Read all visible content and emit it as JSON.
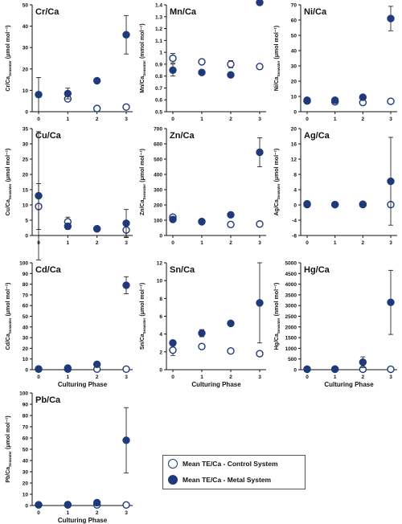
{
  "legend": {
    "control_label": "Mean TE/Ca - Control System",
    "metal_label": "Mean TE/Ca - Metal System"
  },
  "colors": {
    "marker": "#1f3a7a",
    "axis": "#111111"
  },
  "chart_data": [
    {
      "type": "scatter",
      "title": "Cr/Ca",
      "xlabel": "",
      "ylabel_main": "Cr/Ca",
      "ylabel_sub": "Seawater",
      "ylabel_unit": "(μmol mol⁻¹)",
      "x": [
        0,
        1,
        2,
        3
      ],
      "ylim": [
        0,
        50
      ],
      "yticks": [
        0,
        10,
        20,
        30,
        40,
        50
      ],
      "series": [
        {
          "role": "control",
          "values": [
            null,
            6,
            1.5,
            2.2
          ],
          "err": [
            0,
            0,
            0,
            0
          ]
        },
        {
          "role": "metal",
          "values": [
            8,
            8.5,
            14.5,
            36
          ],
          "err": [
            8,
            2.5,
            0,
            9
          ]
        }
      ]
    },
    {
      "type": "scatter",
      "title": "Mn/Ca",
      "xlabel": "",
      "ylabel_main": "Mn/Ca",
      "ylabel_sub": "Seawater",
      "ylabel_unit": "(mmol mol⁻¹)",
      "x": [
        0,
        1,
        2,
        3
      ],
      "ylim": [
        0.5,
        1.4
      ],
      "yticks": [
        0.5,
        0.6,
        0.7,
        0.8,
        0.9,
        1.0,
        1.1,
        1.2,
        1.3,
        1.4
      ],
      "series": [
        {
          "role": "control",
          "values": [
            0.95,
            0.92,
            0.9,
            0.88
          ],
          "err": [
            0.04,
            0,
            0.03,
            0.02
          ]
        },
        {
          "role": "metal",
          "values": [
            0.85,
            0.83,
            0.81,
            1.42
          ],
          "err": [
            0.05,
            0.02,
            0,
            0.015
          ]
        }
      ]
    },
    {
      "type": "scatter",
      "title": "Ni/Ca",
      "xlabel": "",
      "ylabel_main": "Ni/Ca",
      "ylabel_sub": "Seawater",
      "ylabel_unit": "(μmol mol⁻¹)",
      "x": [
        0,
        1,
        2,
        3
      ],
      "ylim": [
        0,
        70
      ],
      "yticks": [
        0,
        10,
        20,
        30,
        40,
        50,
        60,
        70
      ],
      "series": [
        {
          "role": "control",
          "values": [
            7,
            6.5,
            6,
            6.8
          ],
          "err": [
            0,
            0,
            0,
            0
          ]
        },
        {
          "role": "metal",
          "values": [
            7.5,
            7.5,
            9.5,
            61
          ],
          "err": [
            0,
            1,
            0,
            8
          ]
        }
      ]
    },
    {
      "type": "scatter",
      "title": "Cu/Ca",
      "xlabel": "",
      "ylabel_main": "Cu/Ca",
      "ylabel_sub": "Seawater",
      "ylabel_unit": "(μmol mol⁻¹)",
      "x": [
        0,
        1,
        2,
        3
      ],
      "ylim": [
        0,
        35
      ],
      "yticks": [
        0,
        5,
        10,
        15,
        20,
        25,
        30,
        35
      ],
      "series": [
        {
          "role": "control",
          "values": [
            9.5,
            4.5,
            2.2,
            1.8
          ],
          "err": [
            7.5,
            1.5,
            0,
            2.5
          ]
        },
        {
          "role": "metal",
          "values": [
            13,
            3,
            2.2,
            4
          ],
          "err": [
            21,
            1,
            0,
            4.5
          ]
        }
      ]
    },
    {
      "type": "scatter",
      "title": "Zn/Ca",
      "xlabel": "",
      "ylabel_main": "Zn/Ca",
      "ylabel_sub": "Seawater",
      "ylabel_unit": "(μmol mol⁻¹)",
      "x": [
        0,
        1,
        2,
        3
      ],
      "ylim": [
        0,
        700
      ],
      "yticks": [
        0,
        100,
        200,
        300,
        400,
        500,
        600,
        700
      ],
      "series": [
        {
          "role": "control",
          "values": [
            120,
            92,
            72,
            75
          ],
          "err": [
            0,
            0,
            0,
            0
          ]
        },
        {
          "role": "metal",
          "values": [
            105,
            90,
            135,
            545
          ],
          "err": [
            0,
            0,
            0,
            95
          ]
        }
      ]
    },
    {
      "type": "scatter",
      "title": "Ag/Ca",
      "xlabel": "",
      "ylabel_main": "Ag/Ca",
      "ylabel_sub": "Seawater",
      "ylabel_unit": "(μmol mol⁻¹)",
      "x": [
        0,
        1,
        2,
        3
      ],
      "ylim": [
        -8,
        20
      ],
      "yticks": [
        -8,
        -4,
        0,
        4,
        8,
        12,
        16,
        20
      ],
      "series": [
        {
          "role": "control",
          "values": [
            0.3,
            0.1,
            0.1,
            0.1
          ],
          "err": [
            0,
            0,
            0.5,
            0
          ]
        },
        {
          "role": "metal",
          "values": [
            0.1,
            0.1,
            0.2,
            6.2
          ],
          "err": [
            0,
            0,
            0,
            11.5
          ]
        }
      ]
    },
    {
      "type": "scatter",
      "title": "Cd/Ca",
      "xlabel": "Culturing Phase",
      "ylabel_main": "Cd/Ca",
      "ylabel_sub": "Seawater",
      "ylabel_unit": "(μmol mol⁻¹)",
      "x": [
        0,
        1,
        2,
        3
      ],
      "ylim": [
        0,
        100
      ],
      "yticks": [
        0,
        10,
        20,
        30,
        40,
        50,
        60,
        70,
        80,
        90,
        100
      ],
      "series": [
        {
          "role": "control",
          "values": [
            0.5,
            0.5,
            0.5,
            0.5
          ],
          "err": [
            0,
            0,
            0,
            0
          ]
        },
        {
          "role": "metal",
          "values": [
            0.7,
            1.5,
            5,
            79
          ],
          "err": [
            0,
            0,
            0,
            8
          ]
        }
      ]
    },
    {
      "type": "scatter",
      "title": "Sn/Ca",
      "xlabel": "Culturing Phase",
      "ylabel_main": "Sn/Ca",
      "ylabel_sub": "Seawater",
      "ylabel_unit": "(μmol mol⁻¹)",
      "x": [
        0,
        1,
        2,
        3
      ],
      "ylim": [
        0,
        12
      ],
      "yticks": [
        0,
        2,
        4,
        6,
        8,
        10,
        12
      ],
      "series": [
        {
          "role": "control",
          "values": [
            2.2,
            2.6,
            2.1,
            1.8
          ],
          "err": [
            0.6,
            0,
            0,
            0
          ]
        },
        {
          "role": "metal",
          "values": [
            3.0,
            4.1,
            5.2,
            7.5
          ],
          "err": [
            0,
            0.4,
            0,
            4.5
          ]
        }
      ]
    },
    {
      "type": "scatter",
      "title": "Hg/Ca",
      "xlabel": "Culturing Phase",
      "ylabel_main": "Hg/Ca",
      "ylabel_sub": "Seawater",
      "ylabel_unit": "(nmol mol⁻¹)",
      "x": [
        0,
        1,
        2,
        3
      ],
      "ylim": [
        0,
        5000
      ],
      "yticks": [
        0,
        500,
        1000,
        1500,
        2000,
        2500,
        3000,
        3500,
        4000,
        4500,
        5000
      ],
      "series": [
        {
          "role": "control",
          "values": [
            20,
            20,
            20,
            20
          ],
          "err": [
            0,
            0,
            0,
            0
          ]
        },
        {
          "role": "metal",
          "values": [
            25,
            30,
            350,
            3150
          ],
          "err": [
            0,
            0,
            250,
            1500
          ]
        }
      ]
    },
    {
      "type": "scatter",
      "title": "Pb/Ca",
      "xlabel": "Culturing Phase",
      "ylabel_main": "Pb/Ca",
      "ylabel_sub": "Seawater",
      "ylabel_unit": "(μmol mol⁻¹)",
      "x": [
        0,
        1,
        2,
        3
      ],
      "ylim": [
        0,
        100
      ],
      "yticks": [
        0,
        10,
        20,
        30,
        40,
        50,
        60,
        70,
        80,
        90,
        100
      ],
      "series": [
        {
          "role": "control",
          "values": [
            0.5,
            0.5,
            0.5,
            0.5
          ],
          "err": [
            0,
            0,
            0,
            0
          ]
        },
        {
          "role": "metal",
          "values": [
            0.7,
            0.8,
            2.5,
            58
          ],
          "err": [
            0,
            0,
            0,
            29
          ]
        }
      ]
    }
  ]
}
